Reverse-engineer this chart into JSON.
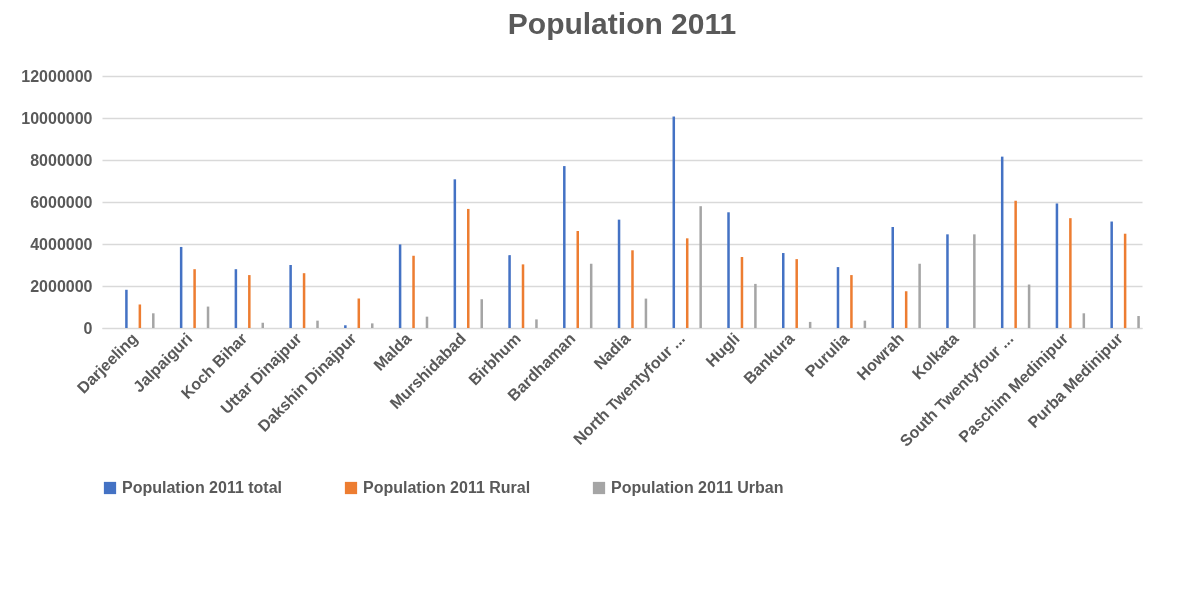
{
  "chart_data": {
    "type": "bar",
    "title": "Population 2011",
    "categories": [
      "Darjeeling",
      "Jalpaiguri",
      "Koch Bihar",
      "Uttar Dinajpur",
      "Dakshin Dinajpur",
      "Malda",
      "Murshidabad",
      "Birbhum",
      "Bardhaman",
      "Nadia",
      "North Twentyfour ...",
      "Hugli",
      "Bankura",
      "Purulia",
      "Howrah",
      "Kolkata",
      "South Twentyfour ...",
      "Paschim Medinipur",
      "Purba Medinipur"
    ],
    "series": [
      {
        "name": "Population 2011 total",
        "color": "#4472c4",
        "values": [
          1820000,
          3860000,
          2800000,
          3000000,
          130000,
          3980000,
          7080000,
          3470000,
          7710000,
          5160000,
          10070000,
          5510000,
          3570000,
          2900000,
          4810000,
          4460000,
          8160000,
          5930000,
          5070000
        ]
      },
      {
        "name": "Population 2011 Rural",
        "color": "#ed7d31",
        "values": [
          1120000,
          2800000,
          2520000,
          2610000,
          1400000,
          3440000,
          5670000,
          3030000,
          4620000,
          3700000,
          4270000,
          3380000,
          3280000,
          2520000,
          1750000,
          0,
          6060000,
          5230000,
          4490000
        ]
      },
      {
        "name": "Population 2011 Urban",
        "color": "#a5a5a5",
        "values": [
          700000,
          1020000,
          250000,
          350000,
          220000,
          540000,
          1370000,
          410000,
          3060000,
          1400000,
          5800000,
          2100000,
          290000,
          350000,
          3060000,
          4460000,
          2070000,
          700000,
          570000
        ]
      }
    ],
    "ylim": [
      0,
      12000000
    ],
    "yticks": [
      0,
      2000000,
      4000000,
      6000000,
      8000000,
      10000000,
      12000000
    ],
    "grid": "y",
    "legend": "bottom"
  }
}
